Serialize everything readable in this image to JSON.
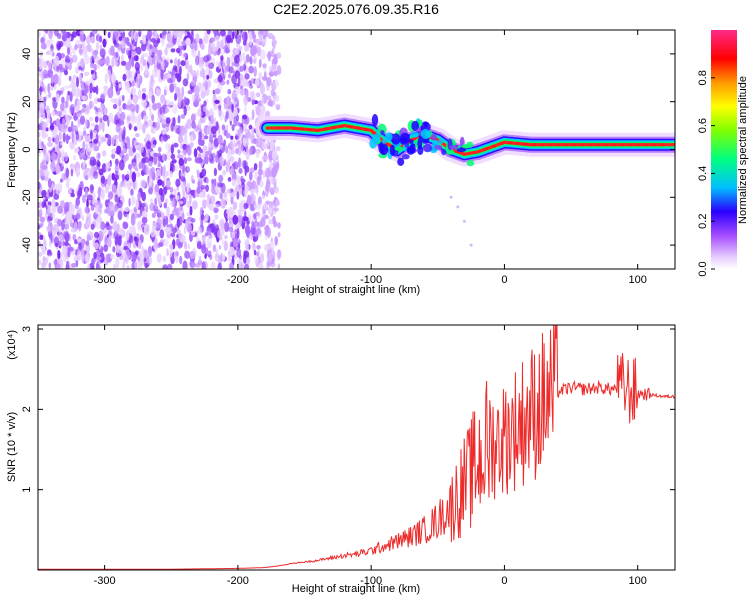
{
  "title": "C2E2.2025.076.09.35.R16",
  "chart_data": [
    {
      "type": "heatmap",
      "title": "C2E2.2025.076.09.35.R16",
      "xlabel": "Height of straight line (km)",
      "ylabel": "Frequency (Hz)",
      "xlim": [
        -350,
        128
      ],
      "ylim": [
        -50,
        50
      ],
      "xticks": [
        -300,
        -200,
        -100,
        0,
        100
      ],
      "yticks": [
        -40,
        -20,
        0,
        20,
        40
      ],
      "noise_region_x": [
        -350,
        -178
      ],
      "ridge": {
        "x": [
          -178,
          -160,
          -140,
          -120,
          -100,
          -90,
          -80,
          -70,
          -60,
          -50,
          -40,
          -30,
          -20,
          -10,
          0,
          20,
          50,
          80,
          100,
          128
        ],
        "freq": [
          9,
          9,
          8,
          10,
          8,
          3,
          0,
          4,
          6,
          4,
          0,
          -2,
          -1,
          1,
          3,
          2,
          2,
          2,
          2,
          2
        ]
      },
      "colorbar": {
        "label": "Normalized spectral amplitude",
        "range": [
          0,
          1
        ],
        "ticks": [
          "0.0",
          "0.2",
          "0.4",
          "0.6",
          "0.8"
        ],
        "colors": [
          "#ffffff",
          "#d7a8ff",
          "#8a2be2",
          "#0000ff",
          "#00c8ff",
          "#00ff60",
          "#a0ff00",
          "#ffff00",
          "#ff8000",
          "#ff0000",
          "#ff2090"
        ]
      }
    },
    {
      "type": "line",
      "xlabel": "Height of straight line (km)",
      "ylabel": "SNR (10 * v/v)",
      "scale_label": "(x10⁴)",
      "xlim": [
        -350,
        128
      ],
      "ylim": [
        0,
        3.05
      ],
      "xticks": [
        -300,
        -200,
        -100,
        0,
        100
      ],
      "yticks": [
        1,
        2,
        3
      ],
      "color": "#ee2b2b",
      "series": [
        {
          "x": [
            -350,
            -300,
            -250,
            -200,
            -180,
            -170,
            -160,
            -150,
            -140,
            -130,
            -120,
            -110,
            -100,
            -90,
            -80,
            -70,
            -60,
            -50,
            -40,
            -30,
            -25,
            -20,
            -15,
            -10,
            -5,
            0,
            5,
            10,
            15,
            20,
            25,
            30,
            40,
            50,
            60,
            70,
            80,
            90,
            95,
            100,
            110,
            120,
            128
          ],
          "y": [
            0.01,
            0.01,
            0.01,
            0.02,
            0.03,
            0.05,
            0.08,
            0.1,
            0.12,
            0.15,
            0.18,
            0.2,
            0.24,
            0.3,
            0.36,
            0.42,
            0.5,
            0.62,
            0.8,
            1.05,
            1.2,
            1.35,
            1.5,
            1.55,
            1.6,
            1.65,
            1.72,
            1.8,
            1.88,
            1.95,
            2.02,
            2.1,
            2.22,
            2.27,
            2.25,
            2.27,
            2.25,
            2.28,
            2.22,
            2.2,
            2.18,
            2.16,
            2.16
          ]
        }
      ]
    }
  ]
}
